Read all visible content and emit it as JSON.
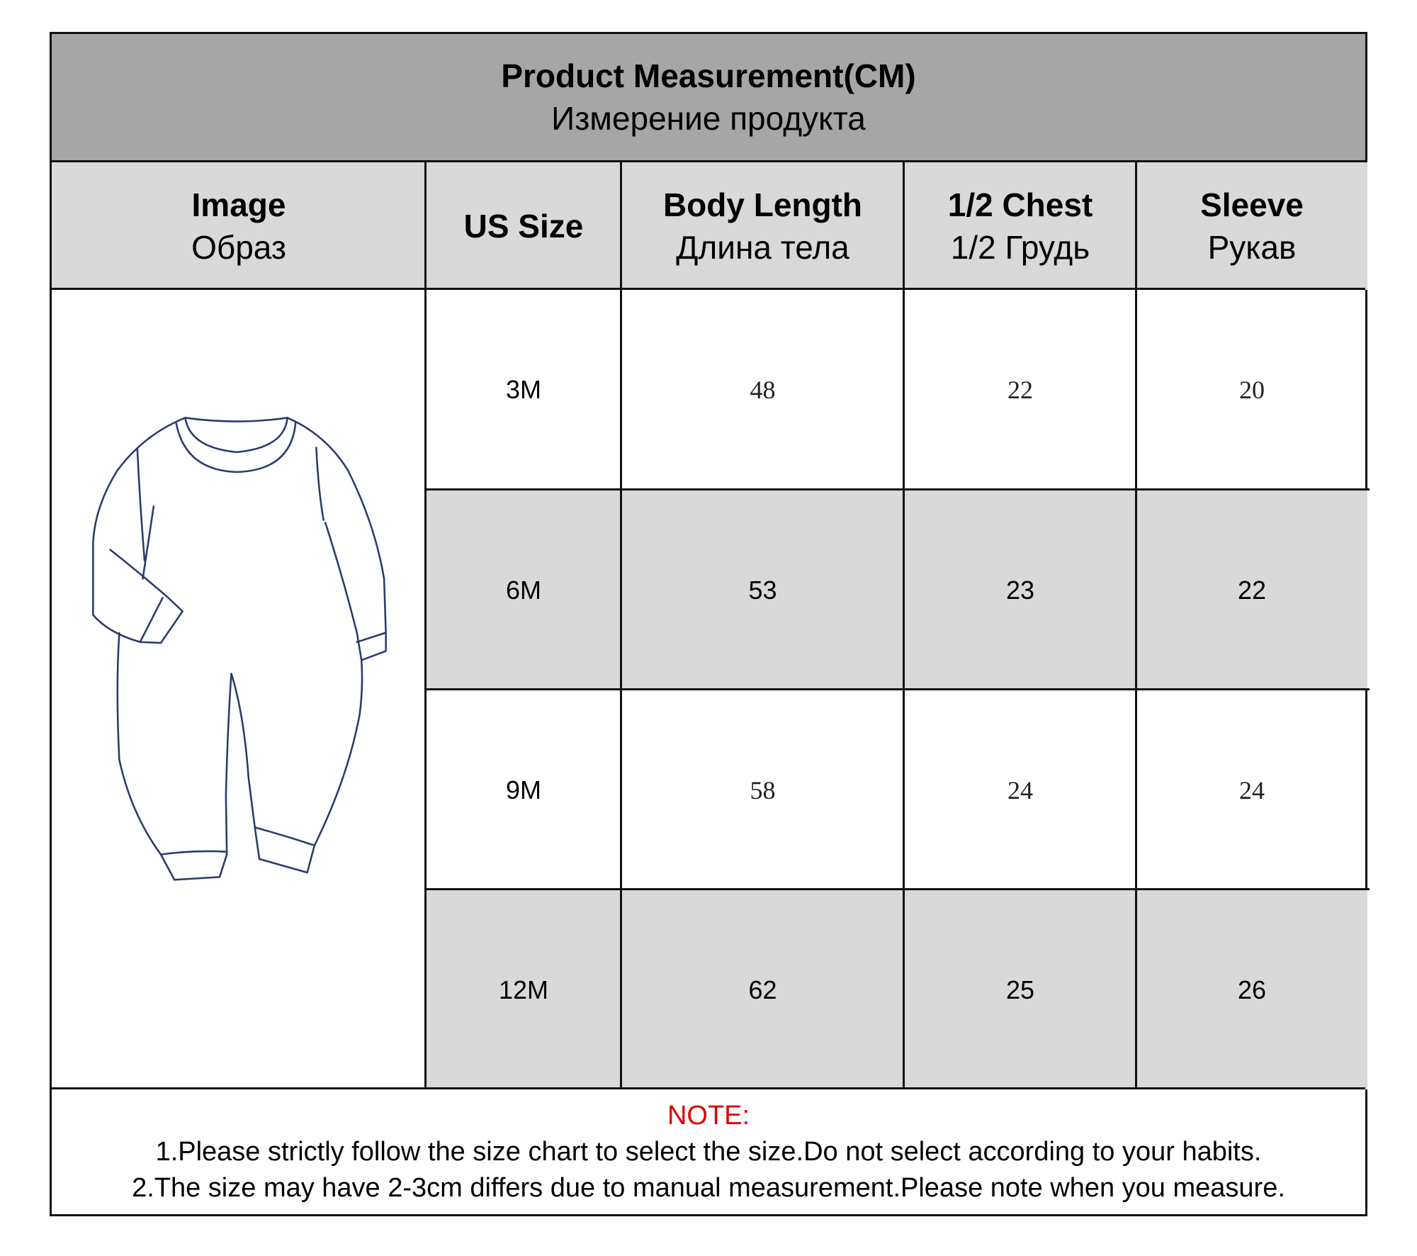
{
  "title": {
    "en": "Product Measurement(CM)",
    "ru": "Измерение продукта"
  },
  "headers": [
    {
      "en": "Image",
      "ru": "Образ"
    },
    {
      "en": "US Size",
      "ru": ""
    },
    {
      "en": "Body Length",
      "ru": "Длина тела"
    },
    {
      "en": "1/2 Chest",
      "ru": "1/2 Грудь"
    },
    {
      "en": "Sleeve",
      "ru": "Рукав"
    }
  ],
  "rows": [
    {
      "size": "3M",
      "body_length": "48",
      "chest": "22",
      "sleeve": "20"
    },
    {
      "size": "6M",
      "body_length": "53",
      "chest": "23",
      "sleeve": "22"
    },
    {
      "size": "9M",
      "body_length": "58",
      "chest": "24",
      "sleeve": "24"
    },
    {
      "size": "12M",
      "body_length": "62",
      "chest": "25",
      "sleeve": "26"
    }
  ],
  "note": {
    "label": "NOTE:",
    "lines": [
      "1.Please strictly follow the size chart to select the size.Do not select according to your habits.",
      "2.The size may have 2-3cm differs due to manual measurement.Please note when you measure."
    ]
  },
  "colors": {
    "title_bg": "#a6a6a6",
    "header_bg": "#d9d9d9",
    "note_label": "#e00000",
    "sketch_line": "#2b3a6b"
  },
  "image_icon": "baby-romper-sketch"
}
